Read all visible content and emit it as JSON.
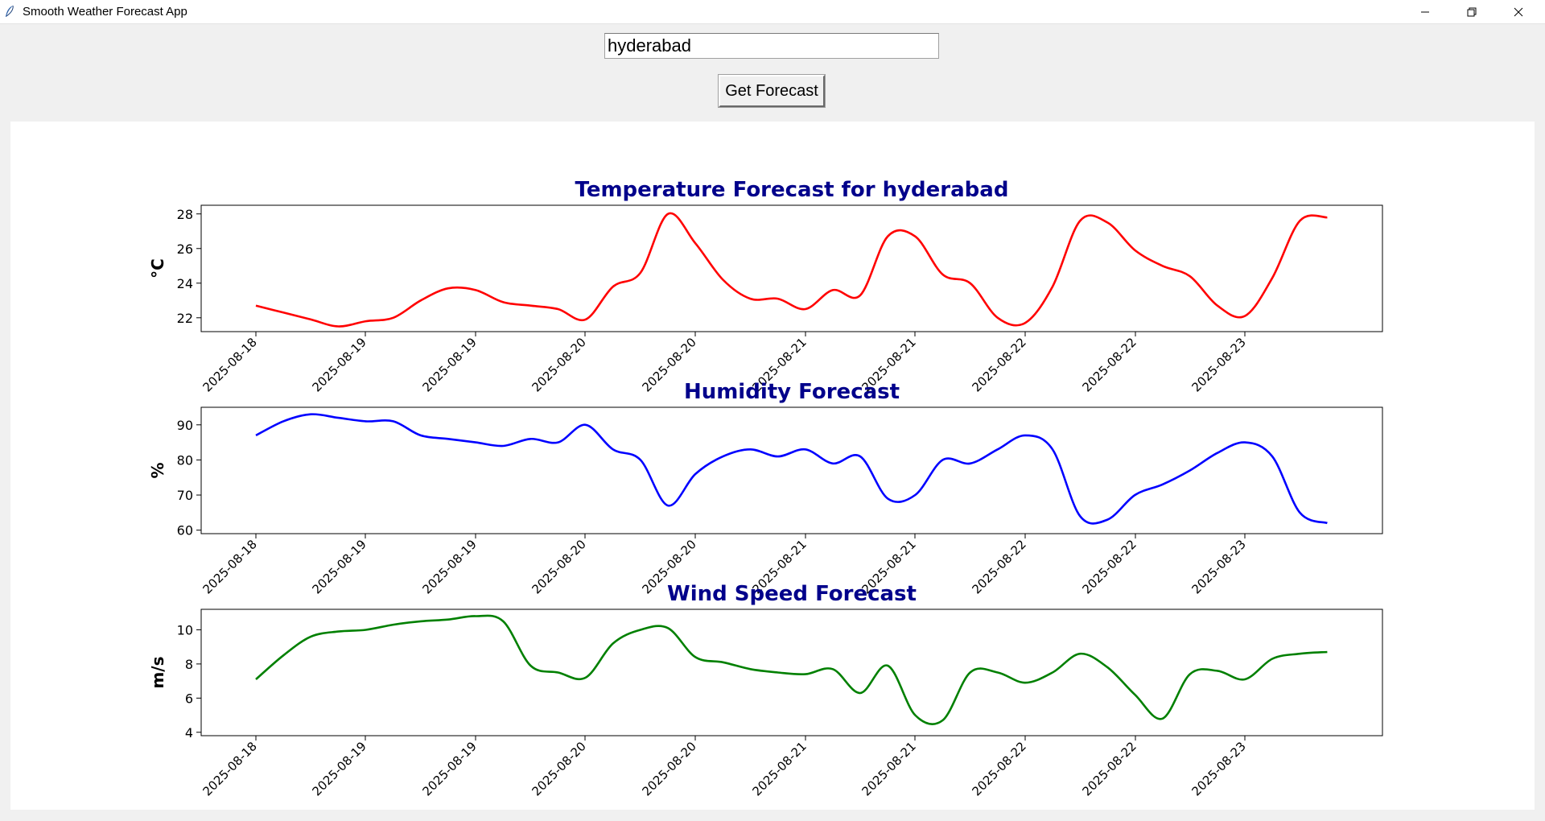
{
  "window": {
    "title": "Smooth Weather Forecast App",
    "controls": [
      "minimize-icon",
      "restore-icon",
      "close-icon"
    ]
  },
  "search": {
    "value": "hyderabad",
    "button_label": "Get Forecast"
  },
  "chart_data": [
    {
      "type": "line",
      "title": "Temperature Forecast for hyderabad",
      "xlabel": "",
      "ylabel": "°C",
      "color": "#ff0000",
      "x_tick_labels": [
        "2025-08-18",
        "2025-08-19",
        "2025-08-19",
        "2025-08-20",
        "2025-08-20",
        "2025-08-21",
        "2025-08-21",
        "2025-08-22",
        "2025-08-22",
        "2025-08-23"
      ],
      "y_ticks": [
        22,
        24,
        26,
        28
      ],
      "ylim": [
        21.2,
        28.5
      ],
      "x": [
        0,
        0.25,
        0.5,
        0.75,
        1,
        1.25,
        1.5,
        1.75,
        2,
        2.25,
        2.5,
        2.75,
        3,
        3.25,
        3.5,
        3.75,
        4,
        4.25,
        4.5,
        4.75,
        5,
        5.25,
        5.5,
        5.75,
        6,
        6.25,
        6.5,
        6.75,
        7,
        7.25,
        7.5,
        7.75,
        8,
        8.25,
        8.5,
        8.75,
        9,
        9.25,
        9.5,
        9.75
      ],
      "values": [
        22.7,
        22.3,
        21.9,
        21.5,
        21.8,
        22.0,
        23.0,
        23.7,
        23.6,
        22.9,
        22.7,
        22.5,
        21.9,
        23.8,
        24.6,
        28.0,
        26.3,
        24.2,
        23.1,
        23.1,
        22.5,
        23.6,
        23.3,
        26.7,
        26.7,
        24.5,
        24.0,
        22.0,
        21.7,
        23.8,
        27.6,
        27.5,
        25.9,
        25.0,
        24.4,
        22.7,
        22.1,
        24.3,
        27.6,
        27.8
      ]
    },
    {
      "type": "line",
      "title": "Humidity Forecast",
      "xlabel": "",
      "ylabel": "%",
      "color": "#0000ff",
      "x_tick_labels": [
        "2025-08-18",
        "2025-08-19",
        "2025-08-19",
        "2025-08-20",
        "2025-08-20",
        "2025-08-21",
        "2025-08-21",
        "2025-08-22",
        "2025-08-22",
        "2025-08-23"
      ],
      "y_ticks": [
        60,
        70,
        80,
        90
      ],
      "ylim": [
        59,
        95
      ],
      "x": [
        0,
        0.25,
        0.5,
        0.75,
        1,
        1.25,
        1.5,
        1.75,
        2,
        2.25,
        2.5,
        2.75,
        3,
        3.25,
        3.5,
        3.75,
        4,
        4.25,
        4.5,
        4.75,
        5,
        5.25,
        5.5,
        5.75,
        6,
        6.25,
        6.5,
        6.75,
        7,
        7.25,
        7.5,
        7.75,
        8,
        8.25,
        8.5,
        8.75,
        9,
        9.25,
        9.5,
        9.75
      ],
      "values": [
        87,
        91,
        93,
        92,
        91,
        91,
        87,
        86,
        85,
        84,
        86,
        85,
        90,
        83,
        80,
        67,
        76,
        81,
        83,
        81,
        83,
        79,
        81,
        69,
        70,
        80,
        79,
        83,
        87,
        83,
        64,
        63,
        70,
        73,
        77,
        82,
        85,
        81,
        65,
        62
      ]
    },
    {
      "type": "line",
      "title": "Wind Speed Forecast",
      "xlabel": "",
      "ylabel": "m/s",
      "color": "#008000",
      "x_tick_labels": [
        "2025-08-18",
        "2025-08-19",
        "2025-08-19",
        "2025-08-20",
        "2025-08-20",
        "2025-08-21",
        "2025-08-21",
        "2025-08-22",
        "2025-08-22",
        "2025-08-23"
      ],
      "y_ticks": [
        4,
        6,
        8,
        10
      ],
      "ylim": [
        3.8,
        11.2
      ],
      "x": [
        0,
        0.25,
        0.5,
        0.75,
        1,
        1.25,
        1.5,
        1.75,
        2,
        2.25,
        2.5,
        2.75,
        3,
        3.25,
        3.5,
        3.75,
        4,
        4.25,
        4.5,
        4.75,
        5,
        5.25,
        5.5,
        5.75,
        6,
        6.25,
        6.5,
        6.75,
        7,
        7.25,
        7.5,
        7.75,
        8,
        8.25,
        8.5,
        8.75,
        9,
        9.25,
        9.5,
        9.75
      ],
      "values": [
        7.1,
        8.5,
        9.6,
        9.9,
        10.0,
        10.3,
        10.5,
        10.6,
        10.8,
        10.5,
        7.9,
        7.5,
        7.2,
        9.2,
        10.0,
        10.1,
        8.4,
        8.1,
        7.7,
        7.5,
        7.4,
        7.7,
        6.3,
        7.9,
        5.0,
        4.7,
        7.5,
        7.5,
        6.9,
        7.5,
        8.6,
        7.8,
        6.2,
        4.8,
        7.4,
        7.6,
        7.1,
        8.3,
        8.6,
        8.7
      ]
    }
  ]
}
